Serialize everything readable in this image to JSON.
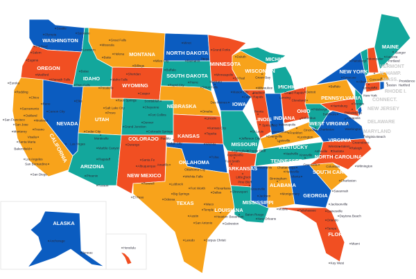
{
  "palette": {
    "blue": "#0b5cc0",
    "orange": "#f8a31b",
    "red": "#f14f22",
    "teal": "#13a79c"
  },
  "states": [
    {
      "id": "WA",
      "label": "WASHINGTON",
      "color": "#0b5cc0"
    },
    {
      "id": "OR",
      "label": "OREGON",
      "color": "#f14f22"
    },
    {
      "id": "CA",
      "label": "CALIFORNIA",
      "color": "#f8a31b"
    },
    {
      "id": "NV",
      "label": "NEVADA",
      "color": "#0b5cc0"
    },
    {
      "id": "ID",
      "label": "IDAHO",
      "color": "#13a79c"
    },
    {
      "id": "MT",
      "label": "MONTANA",
      "color": "#f8a31b"
    },
    {
      "id": "WY",
      "label": "WYOMING",
      "color": "#f14f22"
    },
    {
      "id": "UT",
      "label": "UTAH",
      "color": "#f8a31b"
    },
    {
      "id": "AZ",
      "label": "ARIZONA",
      "color": "#13a79c"
    },
    {
      "id": "CO",
      "label": "COLORADO",
      "color": "#13a79c"
    },
    {
      "id": "NM",
      "label": "NEW MEXICO",
      "color": "#f14f22"
    },
    {
      "id": "ND",
      "label": "NORTH DAKOTA",
      "color": "#0b5cc0"
    },
    {
      "id": "SD",
      "label": "SOUTH DAKOTA",
      "color": "#13a79c"
    },
    {
      "id": "NE",
      "label": "NEBRASKA",
      "color": "#f8a31b"
    },
    {
      "id": "KS",
      "label": "KANSAS",
      "color": "#f14f22"
    },
    {
      "id": "OK",
      "label": "OKLAHOMA",
      "color": "#0b5cc0"
    },
    {
      "id": "TX",
      "label": "TEXAS",
      "color": "#f8a31b"
    },
    {
      "id": "MN",
      "label": "MINNESOTA",
      "color": "#f14f22"
    },
    {
      "id": "IA",
      "label": "IOWA",
      "color": "#0b5cc0"
    },
    {
      "id": "MO",
      "label": "MISSOURI",
      "color": "#13a79c"
    },
    {
      "id": "AR",
      "label": "ARKANSAS",
      "color": "#f14f22"
    },
    {
      "id": "LA",
      "label": "LOUISIANA",
      "color": "#13a79c"
    },
    {
      "id": "WI",
      "label": "WISCONSIN",
      "color": "#f8a31b"
    },
    {
      "id": "MIU",
      "label": "MICHIGAN",
      "color": "#13a79c"
    },
    {
      "id": "MI",
      "label": "MICHIGAN",
      "color": "#13a79c"
    },
    {
      "id": "IL",
      "label": "ILLINOIS",
      "color": "#f14f22"
    },
    {
      "id": "IN",
      "label": "INDIANA",
      "color": "#0b5cc0"
    },
    {
      "id": "OH",
      "label": "OHIO",
      "color": "#f14f22"
    },
    {
      "id": "KY",
      "label": "KENTUCKY",
      "color": "#f8a31b"
    },
    {
      "id": "TN",
      "label": "TENNESSEE",
      "color": "#13a79c"
    },
    {
      "id": "MS",
      "label": "MISSISSIPPI",
      "color": "#0b5cc0"
    },
    {
      "id": "AL",
      "label": "ALABAMA",
      "color": "#f8a31b"
    },
    {
      "id": "GA",
      "label": "GEORGIA",
      "color": "#0b5cc0"
    },
    {
      "id": "FL",
      "label": "FLORIDA",
      "color": "#f14f22"
    },
    {
      "id": "SC",
      "label": "SOUTH CAROLINA",
      "color": "#f8a31b"
    },
    {
      "id": "NC",
      "label": "NORTH CAROLINA",
      "color": "#f14f22"
    },
    {
      "id": "VA",
      "label": "VIRGINIA",
      "color": "#0b5cc0"
    },
    {
      "id": "WV",
      "label": "WEST VIRGINIA",
      "color": "#13a79c"
    },
    {
      "id": "PA",
      "label": "PENNSYLVANIA",
      "color": "#f8a31b"
    },
    {
      "id": "NY",
      "label": "NEW YORK",
      "color": "#0b5cc0"
    },
    {
      "id": "MD",
      "label": "",
      "color": "#f14f22"
    },
    {
      "id": "DE",
      "label": "",
      "color": "#0b5cc0"
    },
    {
      "id": "NJ",
      "label": "",
      "color": "#13a79c"
    },
    {
      "id": "VT",
      "label": "",
      "color": "#13a79c"
    },
    {
      "id": "NH",
      "label": "",
      "color": "#f14f22"
    },
    {
      "id": "MA",
      "label": "",
      "color": "#f8a31b"
    },
    {
      "id": "CT",
      "label": "",
      "color": "#f14f22"
    },
    {
      "id": "RI",
      "label": "",
      "color": "#0b5cc0"
    },
    {
      "id": "ME",
      "label": "MAINE",
      "color": "#13a79c"
    },
    {
      "id": "AK",
      "label": "ALASKA",
      "color": "#0b5cc0"
    },
    {
      "id": "HI",
      "label": "HAWAII",
      "color": "#f14f22"
    }
  ],
  "outside_labels": [
    "VERMONT",
    "N. HAMP.",
    "MASS.",
    "RHODE I.",
    "CONNECT.",
    "NEW JERSEY",
    "DELAWARE",
    "MARYLAND"
  ],
  "cities": [
    "Seattle",
    "Olympia",
    "Spokane",
    "Portland",
    "Salem",
    "Eugene",
    "Medford",
    "Klamath Falls",
    "Lewiston",
    "Boise",
    "Twin Falls",
    "Idaho Falls",
    "Pocatello",
    "Missoula",
    "Great Falls",
    "Helena",
    "Butte",
    "Billings",
    "Minot",
    "Bismarck",
    "Fargo",
    "Miles City",
    "Buffalo",
    "Rapid City",
    "Pierre",
    "Sioux Falls",
    "Sheridan",
    "Casper",
    "Cheyenne",
    "Rock Springs",
    "Grand Forks",
    "Duluth",
    "Minneapolis",
    "St Paul",
    "Mankato",
    "Eureka",
    "Redding",
    "Chico",
    "Reno",
    "Sacramento",
    "Carson City",
    "Elko",
    "San Francisco",
    "Oakland",
    "San Jose",
    "Modesto",
    "Monterey",
    "Fresno",
    "Visalia",
    "Santa Maria",
    "Bakersfield",
    "Las Vegas",
    "Los Angeles",
    "San Bernardino",
    "San Diego",
    "Salt Lake City",
    "Provo",
    "Cedar City",
    "Monticello",
    "Grand Junction",
    "Durango",
    "Marble Canyon",
    "Flagstaff",
    "Phoenix",
    "Tucson",
    "Denver",
    "Fort Collins",
    "Colorado Springs",
    "Pueblo",
    "Santa Fe",
    "Albuquerque",
    "Roswell",
    "Scottsbluff",
    "Omaha",
    "Lincoln",
    "Kansas City",
    "Topeka",
    "Dodge City",
    "Wichita",
    "Tulsa",
    "Oklahoma City",
    "Amarillo",
    "Wichita Falls",
    "Lubbock",
    "Fort Worth",
    "Dallas",
    "El Paso",
    "Odessa",
    "Big Springs",
    "Waco",
    "Temple",
    "Austin",
    "San Antonio",
    "Houston",
    "Beaumont",
    "Galveston",
    "Laredo",
    "Corpus Christi",
    "Texarkana",
    "Shreveport",
    "Baton Rouge",
    "New Orleans",
    "Jackson",
    "Montgomery",
    "Mobile",
    "Tallahassee",
    "Jacksonville",
    "Gainesville",
    "Daytona Beach",
    "Orlando",
    "Tampa",
    "Miami",
    "Key West",
    "Atlanta",
    "Savannah",
    "Columbia",
    "Charleston",
    "Greenville",
    "Charlotte",
    "Wilmington",
    "Raleigh",
    "Asheville",
    "Winston-Salem",
    "Greensboro",
    "Nashville",
    "Knoxville",
    "Memphis",
    "Chattanooga",
    "Huntsville",
    "Birmingham",
    "Little Rock",
    "Fort Smith",
    "Fayetteville",
    "Pine Bluff",
    "Greenville",
    "Springfield",
    "Jefferson City",
    "St Louis",
    "Poplar Bluff",
    "Des Moines",
    "Cedar Rapids",
    "Mason City",
    "Peoria",
    "Springfield",
    "Evansville",
    "Indianapolis",
    "Louisville",
    "Frankfort",
    "Lexington",
    "Owensboro",
    "Cincinnati",
    "Columbus",
    "Cleveland",
    "Charleston",
    "Pittsburgh",
    "Harrisburg",
    "Philadelphia",
    "Trenton",
    "New York",
    "Baltimore",
    "Annapolis",
    "Washington",
    "Virginia Beach",
    "Milwaukee",
    "Madison",
    "Green Bay",
    "Detroit",
    "Grand Rapids",
    "Lansing",
    "Syracuse",
    "Buffalo",
    "Albany",
    "Plattsburgh",
    "Montpelier",
    "Concord",
    "Boston",
    "Springfield",
    "Hartford",
    "Providence",
    "Augusta",
    "Bangor",
    "Portland",
    "Anchorage",
    "Juneau",
    "Honolulu"
  ]
}
